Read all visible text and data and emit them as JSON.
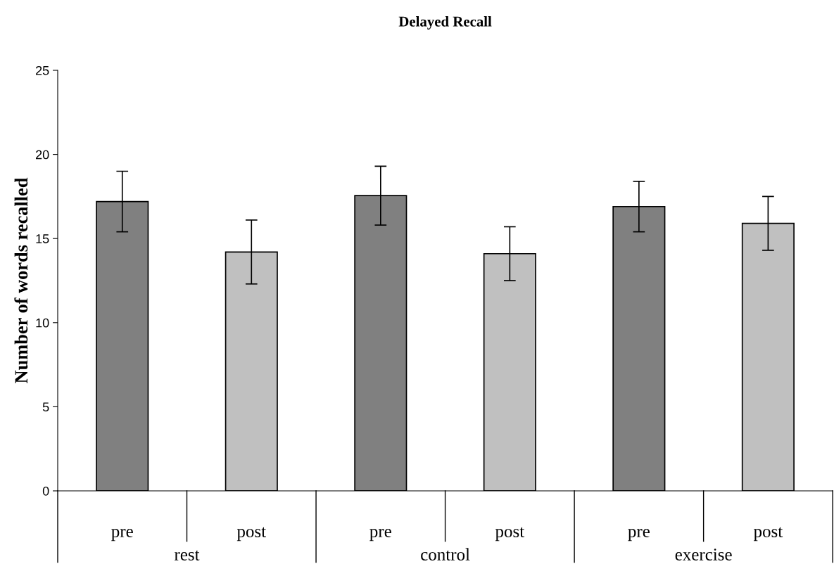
{
  "chart_data": {
    "type": "bar",
    "title": "Delayed Recall",
    "ylabel": "Number of words recalled",
    "categories": [
      "pre",
      "post",
      "pre",
      "post",
      "pre",
      "post"
    ],
    "values": [
      17.2,
      14.2,
      17.55,
      14.1,
      16.9,
      15.9
    ],
    "colors": [
      "#808080",
      "#c0c0c0",
      "#808080",
      "#c0c0c0",
      "#808080",
      "#c0c0c0"
    ],
    "errors": [
      1.8,
      1.9,
      1.75,
      1.6,
      1.5,
      1.6
    ],
    "annotations": [
      "rest",
      "control",
      "exercise"
    ],
    "ylim": [
      0,
      25
    ],
    "yticks": [
      0,
      5,
      10,
      15,
      20,
      25
    ],
    "grid": false,
    "legend": false
  }
}
